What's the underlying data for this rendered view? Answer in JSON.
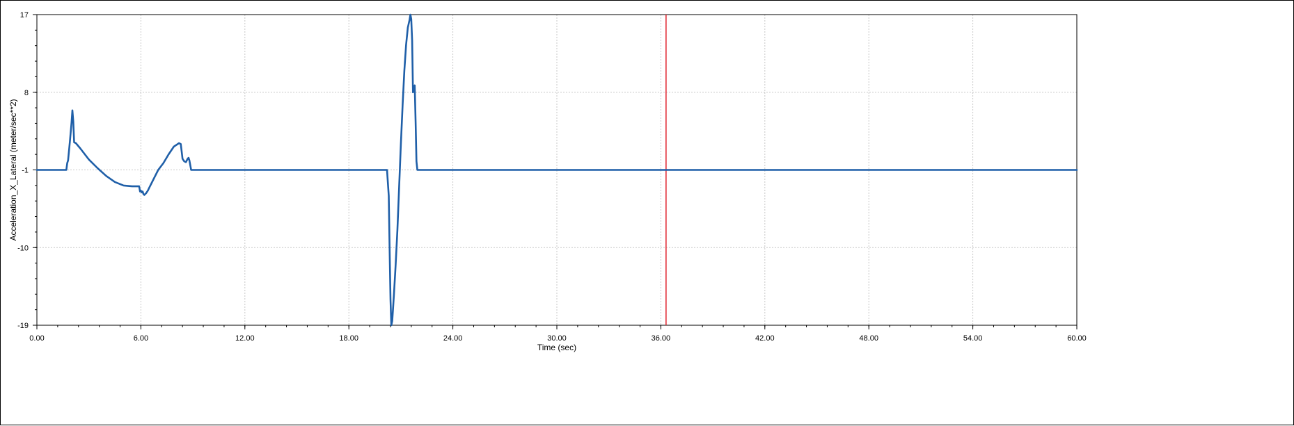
{
  "chart_data": {
    "type": "line",
    "title": "",
    "xlabel": "Time (sec)",
    "ylabel": "Acceleration_X_Lateral (meter/sec**2)",
    "xlim": [
      0,
      60
    ],
    "ylim": [
      -19,
      17
    ],
    "grid": true,
    "x_ticks": [
      "0.00",
      "6.00",
      "12.00",
      "18.00",
      "24.00",
      "30.00",
      "36.00",
      "42.00",
      "48.00",
      "54.00",
      "60.00"
    ],
    "x_tick_values": [
      0,
      6,
      12,
      18,
      24,
      30,
      36,
      42,
      48,
      54,
      60
    ],
    "y_ticks": [
      "17",
      "8",
      "-1",
      "-10",
      "-19"
    ],
    "y_tick_values": [
      17,
      8,
      -1,
      -10,
      -19
    ],
    "cursor_x": 36.3,
    "colors": {
      "series": "#1f5fa8",
      "cursor": "#e0202a",
      "grid": "#c8c8c8"
    },
    "series": [
      {
        "x": [
          0,
          1.7,
          1.75,
          1.8,
          1.9,
          2.0,
          2.05,
          2.1,
          2.15,
          2.25,
          2.5,
          3.0,
          3.5,
          4.0,
          4.5,
          5.0,
          5.5,
          5.9,
          5.95,
          6.0,
          6.05,
          6.1,
          6.15,
          6.2,
          6.3,
          6.4,
          6.5,
          6.6,
          6.8,
          7.0,
          7.3,
          7.6,
          7.9,
          8.2,
          8.3,
          8.35,
          8.4,
          8.5,
          8.6,
          8.7,
          8.75,
          8.8,
          8.9,
          9.0,
          20.2,
          20.3,
          20.35,
          20.4,
          20.45,
          20.5,
          20.55,
          20.6,
          20.7,
          20.8,
          20.9,
          21.0,
          21.1,
          21.2,
          21.3,
          21.4,
          21.5,
          21.55,
          21.6,
          21.65,
          21.7,
          21.75,
          21.8,
          21.85,
          21.9,
          21.95,
          22.0,
          60
        ],
        "y": [
          -1,
          -1,
          -0.2,
          0.1,
          2.2,
          4.5,
          5.9,
          4.6,
          2.2,
          2.1,
          1.5,
          0.2,
          -0.8,
          -1.7,
          -2.4,
          -2.8,
          -2.9,
          -2.9,
          -3.5,
          -3.4,
          -3.6,
          -3.5,
          -3.8,
          -3.9,
          -3.7,
          -3.4,
          -3.0,
          -2.6,
          -1.8,
          -1.0,
          -0.2,
          0.8,
          1.7,
          2.1,
          2.0,
          1.2,
          0.3,
          0.0,
          -0.1,
          0.3,
          0.4,
          0.1,
          -1.0,
          -1.0,
          -1.0,
          -4.0,
          -10.0,
          -16.0,
          -19.0,
          -18.5,
          -17.0,
          -15.5,
          -12.0,
          -8.0,
          -3.0,
          2.0,
          6.5,
          10.5,
          13.5,
          15.5,
          16.4,
          17.0,
          16.5,
          14.0,
          8.0,
          8.5,
          8.8,
          4.5,
          0.0,
          -1.0,
          -1.0,
          -1.0
        ]
      }
    ]
  }
}
